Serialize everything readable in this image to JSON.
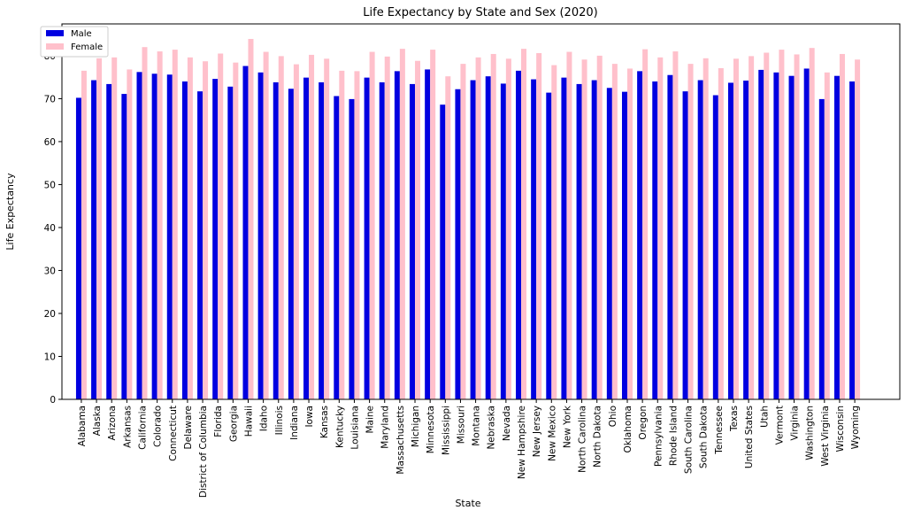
{
  "chart_data": {
    "type": "bar",
    "title": "Life Expectancy by State and Sex (2020)",
    "xlabel": "State",
    "ylabel": "Life Expectancy",
    "ylim": [
      0,
      87.4
    ],
    "yticks": [
      0,
      10,
      20,
      30,
      40,
      50,
      60,
      70,
      80
    ],
    "grid": false,
    "legend_position": "top-left",
    "categories": [
      "Alabama",
      "Alaska",
      "Arizona",
      "Arkansas",
      "California",
      "Colorado",
      "Connecticut",
      "Delaware",
      "District of Columbia",
      "Florida",
      "Georgia",
      "Hawaii",
      "Idaho",
      "Illinois",
      "Indiana",
      "Iowa",
      "Kansas",
      "Kentucky",
      "Louisiana",
      "Maine",
      "Maryland",
      "Massachusetts",
      "Michigan",
      "Minnesota",
      "Mississippi",
      "Missouri",
      "Montana",
      "Nebraska",
      "Nevada",
      "New Hampshire",
      "New Jersey",
      "New Mexico",
      "New York",
      "North Carolina",
      "North Dakota",
      "Ohio",
      "Oklahoma",
      "Oregon",
      "Pennsylvania",
      "Rhode Island",
      "South Carolina",
      "South Dakota",
      "Tennessee",
      "Texas",
      "United States",
      "Utah",
      "Vermont",
      "Virginia",
      "Washington",
      "West Virginia",
      "Wisconsin",
      "Wyoming"
    ],
    "series": [
      {
        "name": "Male",
        "color": "#0000e0",
        "values": [
          70.2,
          74.3,
          73.4,
          71.1,
          76.2,
          75.8,
          75.6,
          74.0,
          71.7,
          74.6,
          72.8,
          77.6,
          76.1,
          73.8,
          72.3,
          74.9,
          73.8,
          70.6,
          69.9,
          74.9,
          73.8,
          76.4,
          73.4,
          76.8,
          68.6,
          72.2,
          74.3,
          75.2,
          73.5,
          76.5,
          74.5,
          71.4,
          74.9,
          73.4,
          74.3,
          72.5,
          71.6,
          76.4,
          74.0,
          75.5,
          71.7,
          74.3,
          70.8,
          73.7,
          74.2,
          76.7,
          76.1,
          75.3,
          77.0,
          69.9,
          75.3,
          74.0
        ]
      },
      {
        "name": "Female",
        "color": "#ffc0cb",
        "values": [
          76.5,
          79.4,
          79.6,
          76.8,
          82.0,
          81.0,
          81.4,
          79.6,
          78.7,
          80.5,
          78.4,
          83.9,
          80.9,
          79.9,
          78.0,
          80.2,
          79.3,
          76.5,
          76.4,
          80.9,
          79.8,
          81.6,
          78.8,
          81.4,
          75.2,
          78.1,
          79.6,
          80.4,
          79.3,
          81.6,
          80.6,
          77.8,
          80.9,
          79.1,
          80.0,
          78.1,
          77.0,
          81.5,
          79.6,
          81.0,
          78.1,
          79.4,
          77.1,
          79.3,
          79.9,
          80.7,
          81.4,
          80.3,
          81.8,
          76.1,
          80.4,
          79.1
        ]
      }
    ]
  }
}
